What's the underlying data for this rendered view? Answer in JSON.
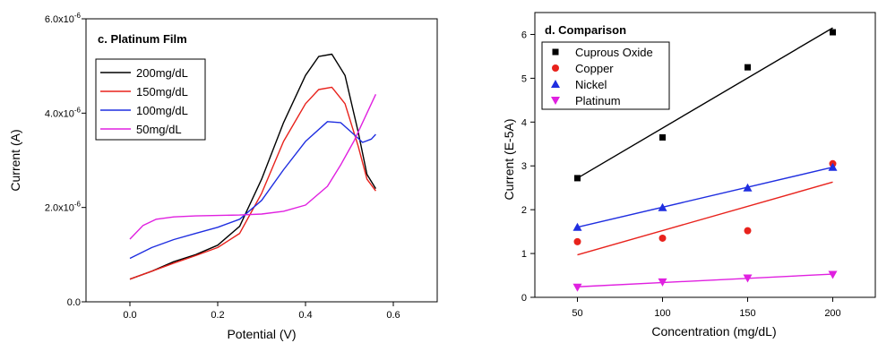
{
  "chart_data": [
    {
      "type": "line",
      "title": "c. Platinum Film",
      "xlabel": "Potential (V)",
      "ylabel": "Current (A)",
      "xlim": [
        -0.1,
        0.7
      ],
      "ylim": [
        0,
        6e-06
      ],
      "x_ticks": [
        "0.0",
        "0.2",
        "0.4",
        "0.6"
      ],
      "x_tick_values": [
        0.0,
        0.2,
        0.4,
        0.6
      ],
      "y_ticks": [
        {
          "mantissa": "0.0",
          "exp": ""
        },
        {
          "mantissa": "2.0x10",
          "exp": "-6"
        },
        {
          "mantissa": "4.0x10",
          "exp": "-6"
        },
        {
          "mantissa": "6.0x10",
          "exp": "-6"
        }
      ],
      "y_tick_values": [
        0,
        2e-06,
        4e-06,
        6e-06
      ],
      "legend_position": "top-left",
      "grid": false,
      "series": [
        {
          "name": "200mg/dL",
          "color": "#000000",
          "x": [
            0.0,
            0.05,
            0.1,
            0.15,
            0.2,
            0.25,
            0.3,
            0.35,
            0.4,
            0.43,
            0.46,
            0.49,
            0.52,
            0.54,
            0.56
          ],
          "y": [
            4.8e-07,
            6.5e-07,
            8.5e-07,
            1e-06,
            1.2e-06,
            1.6e-06,
            2.6e-06,
            3.8e-06,
            4.8e-06,
            5.2e-06,
            5.25e-06,
            4.8e-06,
            3.6e-06,
            2.7e-06,
            2.4e-06
          ]
        },
        {
          "name": "150mg/dL",
          "color": "#e8221c",
          "x": [
            0.0,
            0.05,
            0.1,
            0.15,
            0.2,
            0.25,
            0.3,
            0.35,
            0.4,
            0.43,
            0.46,
            0.49,
            0.52,
            0.54,
            0.56
          ],
          "y": [
            4.8e-07,
            6.5e-07,
            8.2e-07,
            9.8e-07,
            1.15e-06,
            1.45e-06,
            2.3e-06,
            3.4e-06,
            4.2e-06,
            4.5e-06,
            4.55e-06,
            4.2e-06,
            3.3e-06,
            2.6e-06,
            2.35e-06
          ]
        },
        {
          "name": "100mg/dL",
          "color": "#1f2ee0",
          "x": [
            0.0,
            0.05,
            0.1,
            0.15,
            0.2,
            0.25,
            0.3,
            0.35,
            0.4,
            0.45,
            0.48,
            0.51,
            0.53,
            0.55,
            0.56
          ],
          "y": [
            9.2e-07,
            1.15e-06,
            1.32e-06,
            1.45e-06,
            1.58e-06,
            1.75e-06,
            2.15e-06,
            2.8e-06,
            3.4e-06,
            3.82e-06,
            3.8e-06,
            3.55e-06,
            3.38e-06,
            3.45e-06,
            3.55e-06
          ]
        },
        {
          "name": "50mg/dL",
          "color": "#e020e0",
          "x": [
            0.0,
            0.03,
            0.06,
            0.1,
            0.15,
            0.2,
            0.25,
            0.3,
            0.35,
            0.4,
            0.45,
            0.48,
            0.51,
            0.54,
            0.56
          ],
          "y": [
            1.33e-06,
            1.62e-06,
            1.75e-06,
            1.8e-06,
            1.82e-06,
            1.83e-06,
            1.84e-06,
            1.86e-06,
            1.92e-06,
            2.05e-06,
            2.45e-06,
            2.9e-06,
            3.4e-06,
            4e-06,
            4.4e-06
          ]
        }
      ]
    },
    {
      "type": "scatter",
      "title": "d. Comparison",
      "xlabel": "Concentration (mg/dL)",
      "ylabel": "Current (E-5A)",
      "xlim": [
        25,
        225
      ],
      "ylim": [
        0,
        6.5
      ],
      "x_ticks": [
        "50",
        "100",
        "150",
        "200"
      ],
      "x_tick_values": [
        50,
        100,
        150,
        200
      ],
      "y_ticks": [
        "0",
        "1",
        "2",
        "3",
        "4",
        "5",
        "6"
      ],
      "y_tick_values": [
        0,
        1,
        2,
        3,
        4,
        5,
        6
      ],
      "legend_position": "top-left",
      "grid": false,
      "series": [
        {
          "name": "Cuprous Oxide",
          "color": "#000000",
          "marker": "square",
          "x": [
            50,
            100,
            150,
            200
          ],
          "y": [
            2.72,
            3.65,
            5.25,
            6.05
          ],
          "fit": [
            2.72,
            6.15
          ]
        },
        {
          "name": "Copper",
          "color": "#e8221c",
          "marker": "circle",
          "x": [
            50,
            100,
            150,
            200
          ],
          "y": [
            1.27,
            1.35,
            1.52,
            3.05
          ],
          "fit": [
            0.97,
            2.63
          ]
        },
        {
          "name": "Nickel",
          "color": "#1f2ee0",
          "marker": "triangle-up",
          "x": [
            50,
            100,
            150,
            200
          ],
          "y": [
            1.6,
            2.05,
            2.5,
            2.97
          ],
          "fit": [
            1.6,
            2.97
          ]
        },
        {
          "name": "Platinum",
          "color": "#e020e0",
          "marker": "triangle-down",
          "x": [
            50,
            100,
            150,
            200
          ],
          "y": [
            0.23,
            0.35,
            0.44,
            0.52
          ],
          "fit": [
            0.24,
            0.53
          ]
        }
      ]
    }
  ]
}
